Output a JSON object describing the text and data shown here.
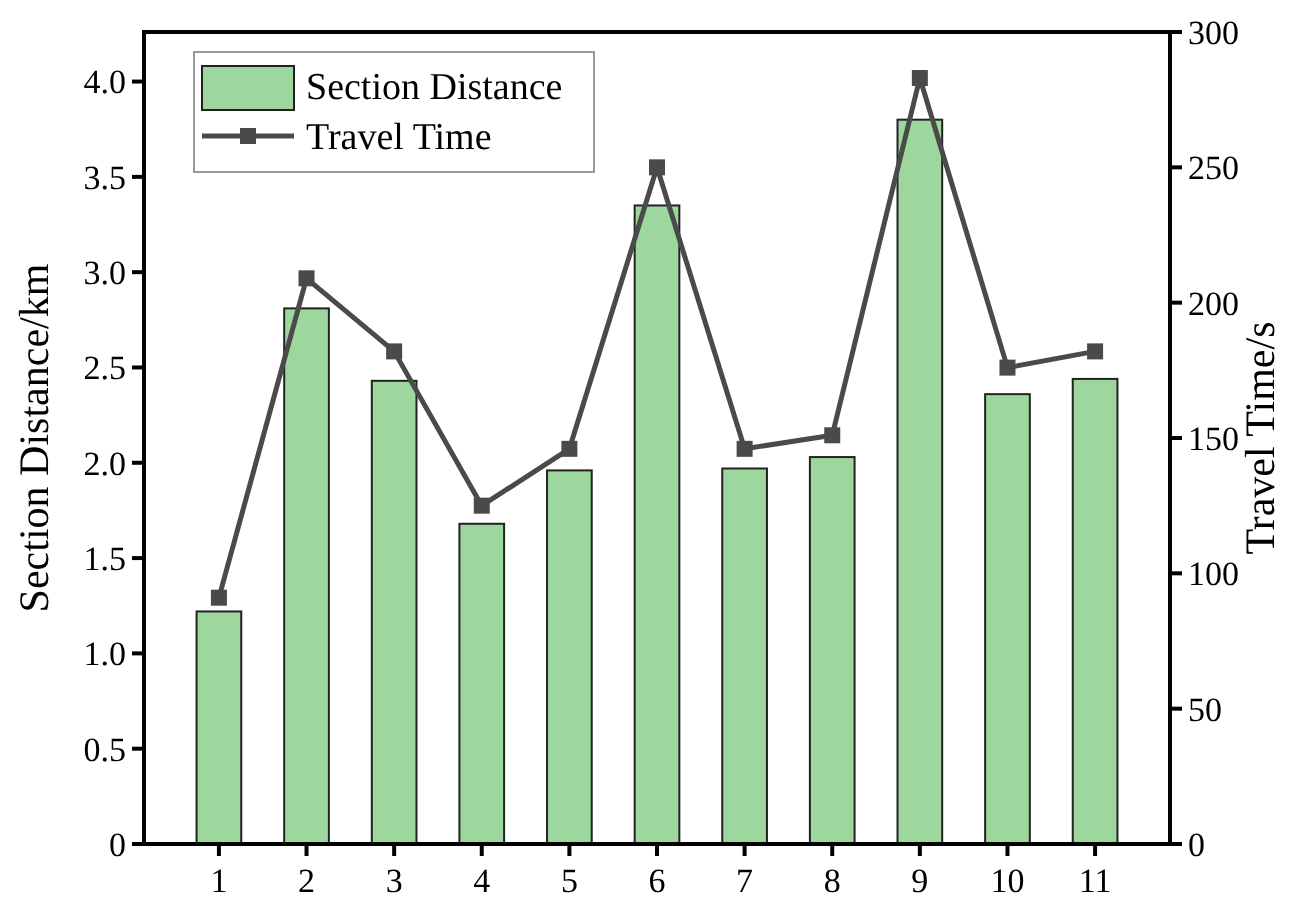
{
  "chart_data": {
    "type": "bar",
    "categories": [
      "1",
      "2",
      "3",
      "4",
      "5",
      "6",
      "7",
      "8",
      "9",
      "10",
      "11"
    ],
    "series": [
      {
        "name": "Section Distance",
        "color": "#9dd79d",
        "values": [
          1.22,
          2.81,
          2.43,
          1.68,
          1.96,
          3.35,
          1.97,
          2.03,
          3.8,
          2.36,
          2.44
        ]
      },
      {
        "name": "Travel Time",
        "type": "line",
        "axis": "y2",
        "color": "#4a4a4a",
        "marker": "square",
        "values": [
          91,
          209,
          182,
          125,
          146,
          250,
          146,
          151,
          283,
          176,
          182
        ]
      }
    ],
    "ylabel": "Section Distance/km",
    "y2label": "Travel Time/s",
    "ylim": [
      0,
      4.26
    ],
    "yticks": [
      0,
      0.5,
      {
        "value": 1,
        "label": "1.0"
      },
      1.5,
      {
        "value": 2,
        "label": "2.0"
      },
      2.5,
      {
        "value": 3,
        "label": "3.0"
      },
      3.5,
      {
        "value": 4,
        "label": "4.0"
      }
    ],
    "y2lim": [
      0,
      300
    ],
    "y2ticks": [
      0,
      50,
      100,
      150,
      200,
      250,
      300
    ],
    "legend": "top left"
  }
}
